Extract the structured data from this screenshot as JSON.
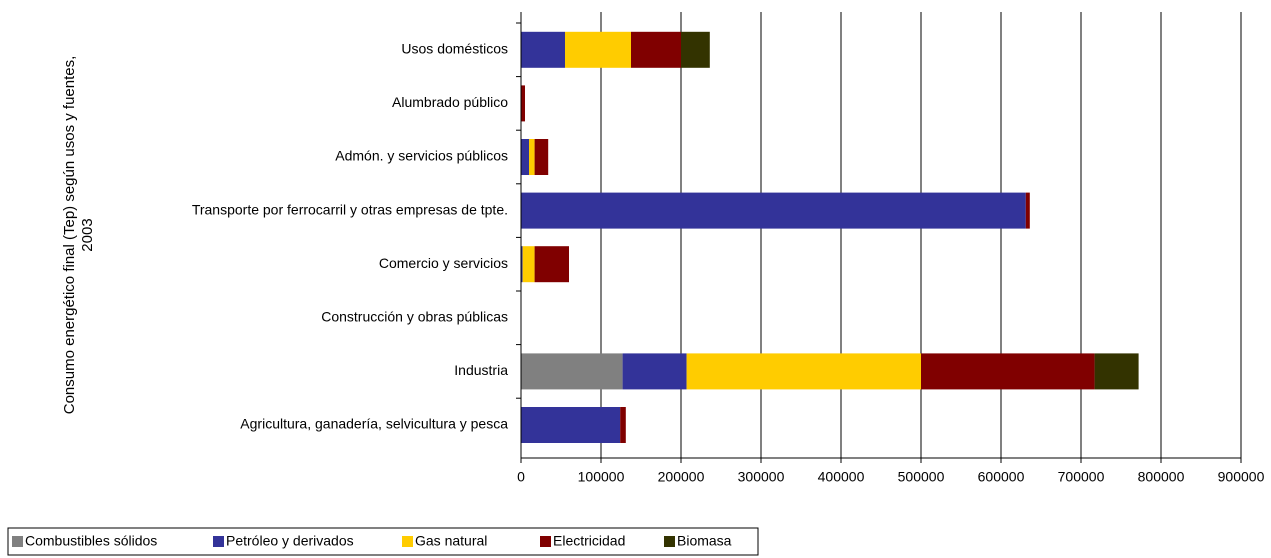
{
  "chart_data": {
    "type": "stacked_barh",
    "y_label": [
      "Consumo energético final (Tep) según usos y fuentes,",
      "2003"
    ],
    "categories": [
      "Usos domésticos",
      "Alumbrado público",
      "Admón. y servicios públicos",
      "Transporte por ferrocarril y otras empresas de tpte.",
      "Comercio y servicios",
      "Construcción y obras públicas",
      "Industria",
      "Agricultura, ganadería, selvicultura y pesca"
    ],
    "series": [
      {
        "name": "Combustibles sólidos",
        "color": "#808080",
        "values": [
          0,
          0,
          0,
          0,
          0,
          0,
          127000,
          0
        ]
      },
      {
        "name": "Petróleo y derivados",
        "color": "#333399",
        "values": [
          55000,
          0,
          10000,
          631000,
          2000,
          0,
          80000,
          124000
        ]
      },
      {
        "name": "Gas natural",
        "color": "#ffcc00",
        "values": [
          82500,
          0,
          7000,
          0,
          15000,
          0,
          293000,
          0
        ]
      },
      {
        "name": "Electricidad",
        "color": "#800000",
        "values": [
          62500,
          5000,
          17000,
          5000,
          43000,
          0,
          217000,
          7000
        ]
      },
      {
        "name": "Biomasa",
        "color": "#333300",
        "values": [
          36000,
          0,
          0,
          0,
          0,
          0,
          55000,
          0
        ]
      }
    ],
    "xlim": [
      0,
      900000
    ],
    "xticks": [
      0,
      100000,
      200000,
      300000,
      400000,
      500000,
      600000,
      700000,
      800000,
      900000
    ],
    "grid": true
  }
}
